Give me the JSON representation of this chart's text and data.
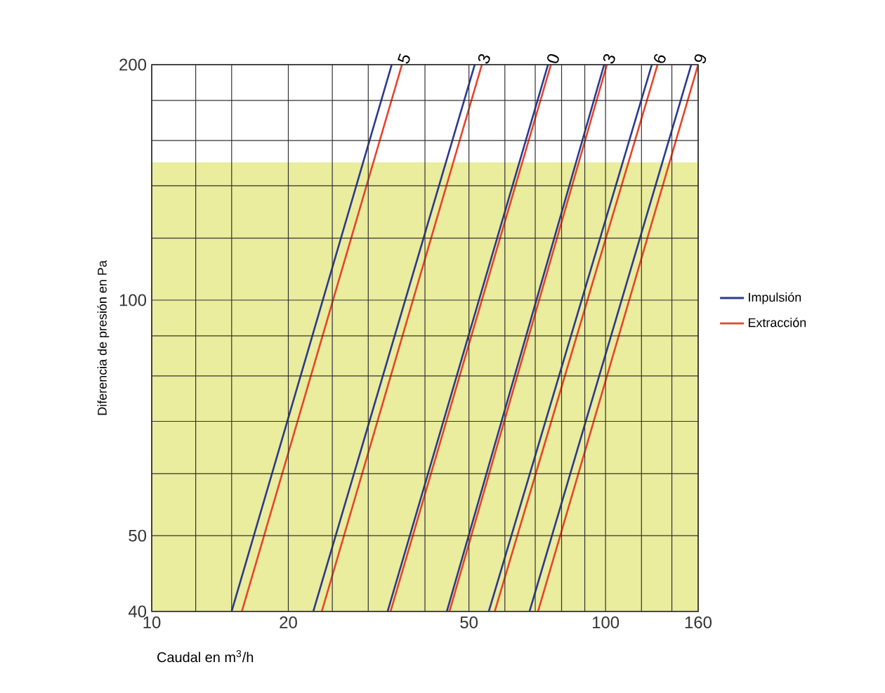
{
  "chart_data": {
    "type": "line",
    "xlabel": "Caudal en m$^{3}$/h",
    "ylabel": "Diferencia de presión en Pa",
    "log": "xy",
    "xlim": [
      10,
      160
    ],
    "ylim": [
      40,
      200
    ],
    "xticks": [
      10,
      {
        "value": 12.5,
        "label": null
      },
      {
        "value": 15,
        "label": null
      },
      20,
      {
        "value": 25,
        "label": null
      },
      {
        "value": 30,
        "label": null
      },
      {
        "value": 40,
        "label": null
      },
      50,
      {
        "value": 60,
        "label": null
      },
      {
        "value": 70,
        "label": null
      },
      {
        "value": 80,
        "label": null
      },
      {
        "value": 90,
        "label": null
      },
      100,
      {
        "value": 120,
        "label": null
      },
      {
        "value": 140,
        "label": null
      },
      160
    ],
    "yticks": [
      40,
      50,
      {
        "value": 60,
        "label": null
      },
      {
        "value": 70,
        "label": null
      },
      {
        "value": 80,
        "label": null
      },
      {
        "value": 90,
        "label": null
      },
      100,
      {
        "value": 120,
        "label": null
      },
      {
        "value": 140,
        "label": null
      },
      {
        "value": 160,
        "label": null
      },
      {
        "value": 180,
        "label": null
      },
      200
    ],
    "grid": true,
    "legend": "right",
    "line_style": "solid",
    "bands": [
      {
        "axis": "y",
        "from": 40,
        "to": 150,
        "color": "#eaec9e"
      }
    ],
    "series": [
      {
        "name": "Impulsión",
        "color": "#2b3a8f",
        "x": [
          15.0,
          33.8
        ],
        "values": [
          40,
          200
        ]
      },
      {
        "name": "Extracción",
        "color": "#e8442a",
        "x": [
          15.8,
          35.6
        ],
        "values": [
          40,
          200
        ]
      },
      {
        "color": "#2b3a8f",
        "x": [
          22.7,
          51.5
        ],
        "values": [
          40,
          200
        ]
      },
      {
        "color": "#e8442a",
        "x": [
          23.7,
          53.4
        ],
        "values": [
          40,
          200
        ]
      },
      {
        "color": "#2b3a8f",
        "x": [
          33.1,
          74.7
        ],
        "values": [
          40,
          200
        ]
      },
      {
        "color": "#e8442a",
        "x": [
          33.6,
          75.8
        ],
        "values": [
          40,
          200
        ]
      },
      {
        "color": "#2b3a8f",
        "x": [
          44.7,
          99.3
        ],
        "values": [
          40,
          200
        ]
      },
      {
        "color": "#e8442a",
        "x": [
          45.3,
          100.7
        ],
        "values": [
          40,
          200
        ]
      },
      {
        "color": "#2b3a8f",
        "x": [
          55.3,
          126.5
        ],
        "values": [
          40,
          200
        ]
      },
      {
        "color": "#e8442a",
        "x": [
          57.0,
          130.2
        ],
        "values": [
          40,
          200
        ]
      },
      {
        "color": "#2b3a8f",
        "x": [
          68.0,
          154.5
        ],
        "values": [
          40,
          200
        ]
      },
      {
        "color": "#e8442a",
        "x": [
          71.0,
          160
        ],
        "values": [
          40,
          200
        ]
      }
    ],
    "annotations": [
      {
        "text": "5",
        "x": 35.6,
        "y": 200
      },
      {
        "text": "3",
        "x": 53.4,
        "y": 200
      },
      {
        "text": "0",
        "x": 75.8,
        "y": 200
      },
      {
        "text": "3",
        "x": 100.7,
        "y": 200
      },
      {
        "text": "6",
        "x": 130.2,
        "y": 200
      },
      {
        "text": "9",
        "x": 160,
        "y": 200
      }
    ]
  }
}
